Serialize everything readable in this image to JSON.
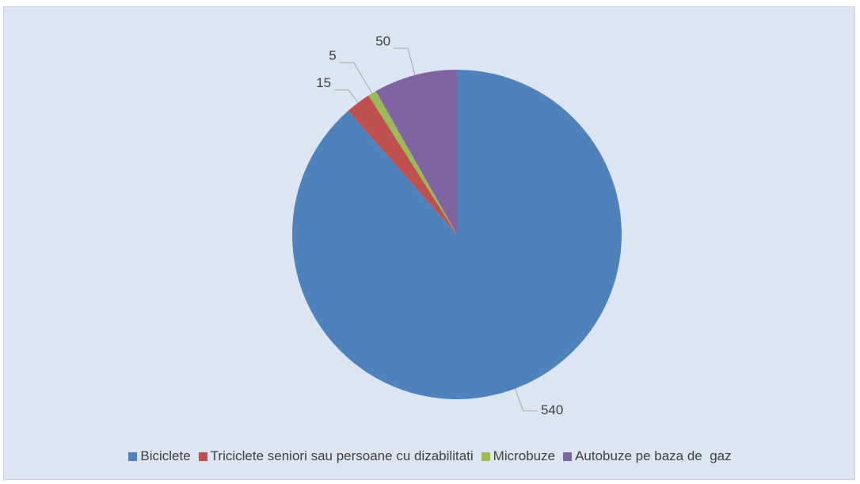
{
  "chart_data": {
    "type": "pie",
    "categories": [
      "Biciclete",
      "Triciclete seniori sau persoane cu dizabilitati",
      "Microbuze",
      "Autobuze pe baza de  gaz"
    ],
    "values": [
      540,
      15,
      5,
      50
    ],
    "colors": [
      "#4f81bd",
      "#c0504d",
      "#9bbb59",
      "#8064a2"
    ],
    "legend": "bottom"
  }
}
